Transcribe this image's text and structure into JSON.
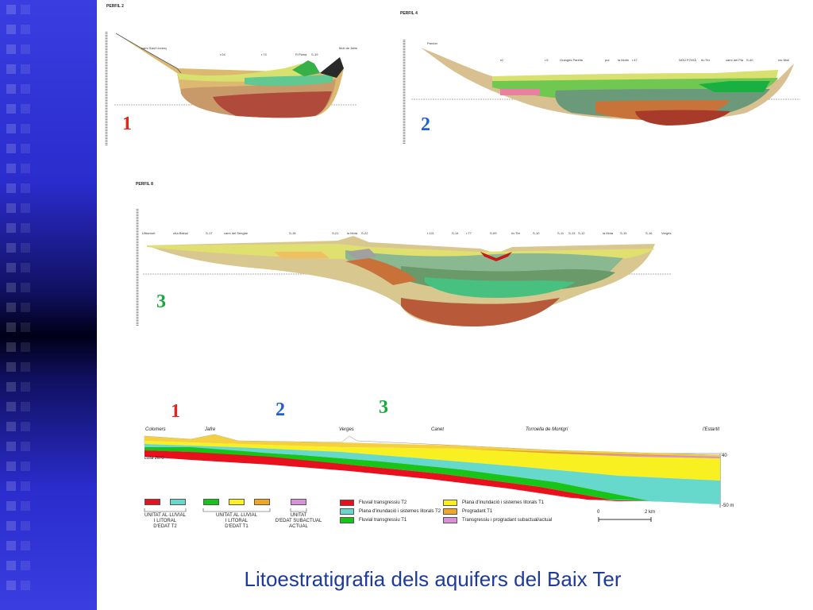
{
  "slide": {
    "title": "Litoestratigrafia dels aquifers del Baix Ter"
  },
  "profiles": {
    "p2": {
      "title": "PERFIL 2",
      "number": "1",
      "number_color": "#e8231c",
      "labels": [
        "camí Sant Llorenç",
        "r.04",
        "r.74",
        "R.Plana",
        "S-19",
        "Molí de Jafre"
      ]
    },
    "p4": {
      "title": "PERFIL 4",
      "number": "2",
      "number_color": "#1f5fd1",
      "labels": [
        "Pardon",
        "r0",
        "r.5",
        "Granges Parella",
        "pur",
        "la Moltó",
        "r.47",
        "NOU FOVIÀ",
        "riu Ter",
        "camí del Pla",
        "S-40",
        "rec Molí"
      ]
    },
    "p8": {
      "title": "PERFIL 8",
      "number": "3",
      "number_color": "#17a83a",
      "labels": [
        "Ultramort",
        "ctra Bisbal",
        "S-17",
        "camí del Senglar",
        "S-18",
        "S-21",
        "la Mota",
        "S-22",
        "r.121",
        "S-14",
        "r.77",
        "S-09",
        "riu Ter",
        "S-10",
        "S-11",
        "S-13",
        "S-12",
        "la Mota",
        "S-15",
        "S-16",
        "Verges"
      ]
    }
  },
  "synthesis": {
    "numbers": [
      {
        "text": "1",
        "color": "#e8231c"
      },
      {
        "text": "2",
        "color": "#1f5fd1"
      },
      {
        "text": "3",
        "color": "#17a83a"
      }
    ],
    "places": [
      "Colomers",
      "Jafre",
      "Verges",
      "Canet",
      "Torroella de Montgrí",
      "l'Estartit"
    ],
    "cota": "cota zero",
    "scale_top": "40",
    "scale_bottom": "-50 m",
    "km_start": "0",
    "km_end": "2 km"
  },
  "legend": {
    "groups": [
      {
        "label": "UNITAT AL·LUVIAL\nI LITORAL\nD'EDAT T2",
        "colors": [
          "#e8101c",
          "#66d8cc"
        ]
      },
      {
        "label": "UNITAT AL·LUVIAL\nI LITORAL\nD'EDAT T1",
        "colors": [
          "#18c418",
          "#f8f020",
          "#f4a620"
        ]
      },
      {
        "label": "UNITAT\nD'EDAT SUBACTUAL\nACTUAL",
        "colors": [
          "#d890d8"
        ]
      }
    ],
    "items": [
      {
        "color": "#e8101c",
        "text": "Fluvial transgressiu T2"
      },
      {
        "color": "#66d8cc",
        "text": "Plana d'inundació i sistemes litorals T2"
      },
      {
        "color": "#18c418",
        "text": "Fluvial transgressiu T1"
      },
      {
        "color": "#f8f020",
        "text": "Plana d'inundació i sistemes litorals T1"
      },
      {
        "color": "#f4a620",
        "text": "Progradant T1"
      },
      {
        "color": "#d890d8",
        "text": "Transgressiu i progradant subactual/actual"
      }
    ]
  }
}
